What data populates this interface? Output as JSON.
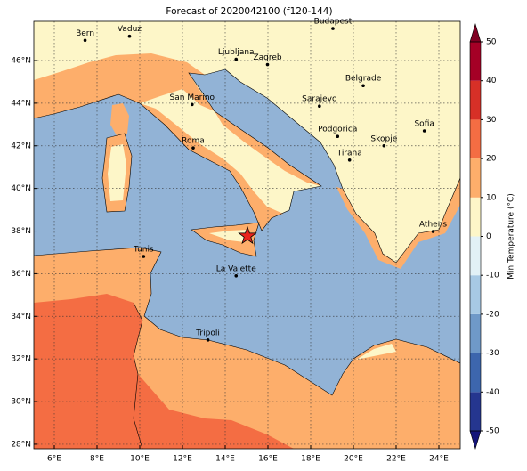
{
  "title": "Forecast of 2020042100 (f120-144)",
  "map": {
    "lon_ticks": [
      {
        "value": 6,
        "label": "6°E"
      },
      {
        "value": 8,
        "label": "8°E"
      },
      {
        "value": 10,
        "label": "10°E"
      },
      {
        "value": 12,
        "label": "12°E"
      },
      {
        "value": 14,
        "label": "14°E"
      },
      {
        "value": 16,
        "label": "16°E"
      },
      {
        "value": 18,
        "label": "18°E"
      },
      {
        "value": 20,
        "label": "20°E"
      },
      {
        "value": 22,
        "label": "22°E"
      },
      {
        "value": 24,
        "label": "24°E"
      }
    ],
    "lat_ticks": [
      {
        "value": 28,
        "label": "28°N"
      },
      {
        "value": 30,
        "label": "30°N"
      },
      {
        "value": 32,
        "label": "32°N"
      },
      {
        "value": 34,
        "label": "34°N"
      },
      {
        "value": 36,
        "label": "36°N"
      },
      {
        "value": 38,
        "label": "38°N"
      },
      {
        "value": 40,
        "label": "40°N"
      },
      {
        "value": 42,
        "label": "42°N"
      },
      {
        "value": 44,
        "label": "44°N"
      },
      {
        "value": 46,
        "label": "46°N"
      }
    ],
    "cities": [
      {
        "name": "Bern",
        "lon": 7.44,
        "lat": 46.95
      },
      {
        "name": "Vaduz",
        "lon": 9.52,
        "lat": 47.14
      },
      {
        "name": "Budapest",
        "lon": 19.04,
        "lat": 47.5
      },
      {
        "name": "Ljubljana",
        "lon": 14.51,
        "lat": 46.06
      },
      {
        "name": "Zagreb",
        "lon": 15.98,
        "lat": 45.81
      },
      {
        "name": "Belgrade",
        "lon": 20.46,
        "lat": 44.82
      },
      {
        "name": "San Marino",
        "lon": 12.45,
        "lat": 43.94
      },
      {
        "name": "Sarajevo",
        "lon": 18.41,
        "lat": 43.86
      },
      {
        "name": "Sofia",
        "lon": 23.32,
        "lat": 42.7
      },
      {
        "name": "Roma",
        "lon": 12.5,
        "lat": 41.9
      },
      {
        "name": "Podgorica",
        "lon": 19.26,
        "lat": 42.44
      },
      {
        "name": "Skopje",
        "lon": 21.43,
        "lat": 42.0
      },
      {
        "name": "Tirana",
        "lon": 19.82,
        "lat": 41.33
      },
      {
        "name": "Athens",
        "lon": 23.73,
        "lat": 37.98
      },
      {
        "name": "Tunis",
        "lon": 10.18,
        "lat": 36.81
      },
      {
        "name": "La Valette",
        "lon": 14.51,
        "lat": 35.9
      },
      {
        "name": "Tripoli",
        "lon": 13.19,
        "lat": 32.89
      }
    ],
    "marker": {
      "lon": 15.04,
      "lat": 37.77,
      "color": "#e8231c"
    }
  },
  "colorbar": {
    "label": "Min Temperature (°C)",
    "ticks": [
      -50,
      -40,
      -30,
      -20,
      -10,
      0,
      10,
      20,
      30,
      40,
      50
    ],
    "colors": [
      "#25368f",
      "#3d66ad",
      "#6f99c8",
      "#a7c9e4",
      "#e2f1f6",
      "#fdf6c8",
      "#fdae6b",
      "#f46d43",
      "#d73027",
      "#a50026"
    ],
    "under_color": "#15157a",
    "over_color": "#7f0022"
  }
}
